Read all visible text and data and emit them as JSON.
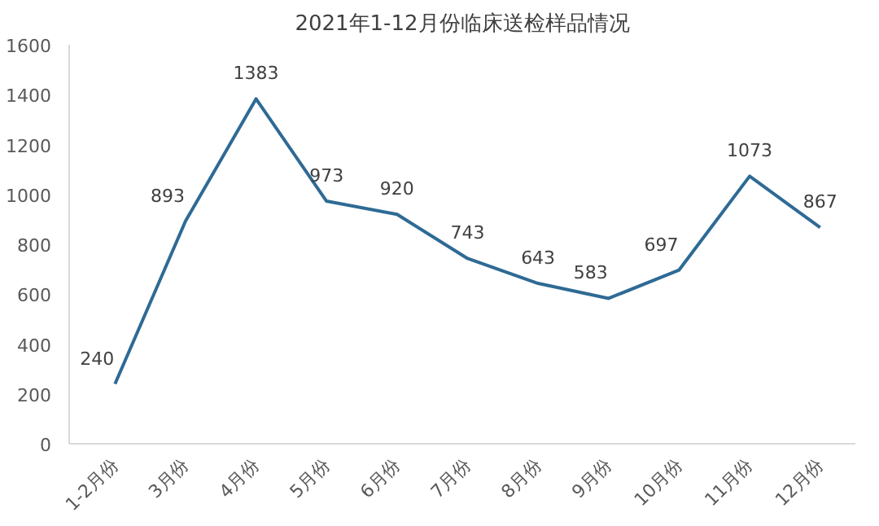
{
  "chart_data": {
    "type": "line",
    "title": "2021年1-12月份临床送检样品情况",
    "categories": [
      "1-2月份",
      "3月份",
      "4月份",
      "5月份",
      "6月份",
      "7月份",
      "8月份",
      "9月份",
      "10月份",
      "11月份",
      "12月份"
    ],
    "series": [
      {
        "color": "#2e6a95",
        "values": [
          240,
          893,
          1383,
          973,
          920,
          743,
          643,
          583,
          697,
          1073,
          867
        ]
      }
    ],
    "ylim": [
      0,
      1600
    ],
    "yticks": [
      0,
      200,
      400,
      600,
      800,
      1000,
      1200,
      1400,
      1600
    ],
    "data_labels": true,
    "grid": false,
    "marker": "none",
    "line_style": "solid"
  }
}
